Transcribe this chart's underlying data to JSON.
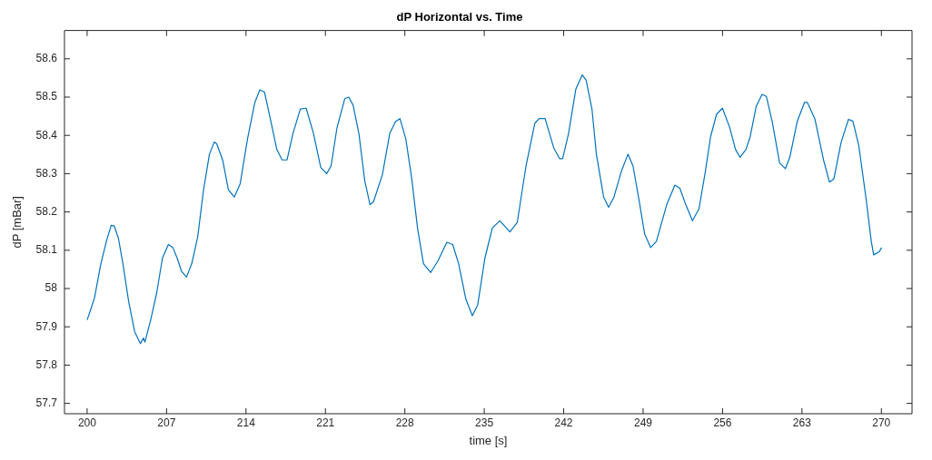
{
  "chart_data": {
    "type": "line",
    "title": "dP Horizontal vs. Time",
    "xlabel": "time [s]",
    "ylabel": "dP [mBar]",
    "x": [
      200,
      200.31,
      200.65,
      201.21,
      201.73,
      202.12,
      202.38,
      202.76,
      203.15,
      203.67,
      204.19,
      204.7,
      204.96,
      205.09,
      205.6,
      206.12,
      206.64,
      207.16,
      207.55,
      207.93,
      208.32,
      208.76,
      209.22,
      209.74,
      210.26,
      210.78,
      211.21,
      211.42,
      211.94,
      212.45,
      212.97,
      213.49,
      214.13,
      214.78,
      215.22,
      215.63,
      216.2,
      216.72,
      217.18,
      217.62,
      218.14,
      218.79,
      219.3,
      219.95,
      220.59,
      221.11,
      221.5,
      222.02,
      222.71,
      223.05,
      223.44,
      223.95,
      224.47,
      224.93,
      225.24,
      226.02,
      226.67,
      227.18,
      227.57,
      228.09,
      228.6,
      229.12,
      229.64,
      230.28,
      230.93,
      231.7,
      232.22,
      232.74,
      233.38,
      233.95,
      234.42,
      235.06,
      235.71,
      236.36,
      236.74,
      237.26,
      237.91,
      238.68,
      239.46,
      239.84,
      240.36,
      241.14,
      241.65,
      241.91,
      242.43,
      243.07,
      243.64,
      243.98,
      244.5,
      244.88,
      245.52,
      245.96,
      246.43,
      247.07,
      247.67,
      248.11,
      248.62,
      249.14,
      249.66,
      250.17,
      251.08,
      251.8,
      252.24,
      252.76,
      253.35,
      253.92,
      254.44,
      254.95,
      255.47,
      255.99,
      256.63,
      257.15,
      257.54,
      258.06,
      258.44,
      258.96,
      259.48,
      259.86,
      260.38,
      261.03,
      261.54,
      261.93,
      262.58,
      263.22,
      263.48,
      264.13,
      264.9,
      265.42,
      265.81,
      266.45,
      267.1,
      267.49,
      268,
      268.65,
      269.11,
      269.32,
      269.81,
      270.02
    ],
    "series": [
      {
        "color": "#0072bd",
        "values": [
          57.918,
          57.945,
          57.976,
          58.065,
          58.127,
          58.165,
          58.164,
          58.131,
          58.065,
          57.964,
          57.887,
          57.856,
          57.871,
          57.86,
          57.918,
          57.987,
          58.08,
          58.115,
          58.107,
          58.08,
          58.045,
          58.03,
          58.065,
          58.134,
          58.258,
          58.351,
          58.383,
          58.378,
          58.336,
          58.258,
          58.239,
          58.274,
          58.39,
          58.486,
          58.519,
          58.513,
          58.436,
          58.363,
          58.336,
          58.336,
          58.405,
          58.469,
          58.471,
          58.405,
          58.316,
          58.3,
          58.32,
          58.42,
          58.496,
          58.5,
          58.479,
          58.405,
          58.281,
          58.219,
          58.227,
          58.297,
          58.405,
          58.436,
          58.444,
          58.39,
          58.289,
          58.158,
          58.065,
          58.042,
          58.073,
          58.121,
          58.115,
          58.065,
          57.972,
          57.929,
          57.957,
          58.08,
          58.158,
          58.177,
          58.165,
          58.148,
          58.173,
          58.32,
          58.432,
          58.444,
          58.444,
          58.366,
          58.339,
          58.339,
          58.405,
          58.521,
          58.558,
          58.544,
          58.467,
          58.351,
          58.239,
          58.212,
          58.239,
          58.305,
          58.351,
          58.32,
          58.235,
          58.142,
          58.107,
          58.123,
          58.219,
          58.27,
          58.262,
          58.219,
          58.177,
          58.208,
          58.297,
          58.397,
          58.455,
          58.471,
          58.421,
          58.363,
          58.343,
          58.363,
          58.397,
          58.475,
          58.507,
          58.502,
          58.436,
          58.328,
          58.313,
          58.343,
          58.436,
          58.486,
          58.486,
          58.444,
          58.336,
          58.278,
          58.286,
          58.382,
          58.442,
          58.437,
          58.375,
          58.235,
          58.123,
          58.088,
          58.096,
          58.107
        ]
      }
    ],
    "xlim": [
      198,
      272.7
    ],
    "ylim": [
      57.673,
      58.674
    ],
    "xticks": [
      200,
      207,
      214,
      221,
      228,
      235,
      242,
      249,
      256,
      263,
      270
    ],
    "yticks": [
      57.7,
      57.8,
      57.9,
      58,
      58.1,
      58.2,
      58.3,
      58.4,
      58.5,
      58.6
    ],
    "grid": false,
    "legend": false,
    "marker": "none",
    "line_style": "solid"
  }
}
